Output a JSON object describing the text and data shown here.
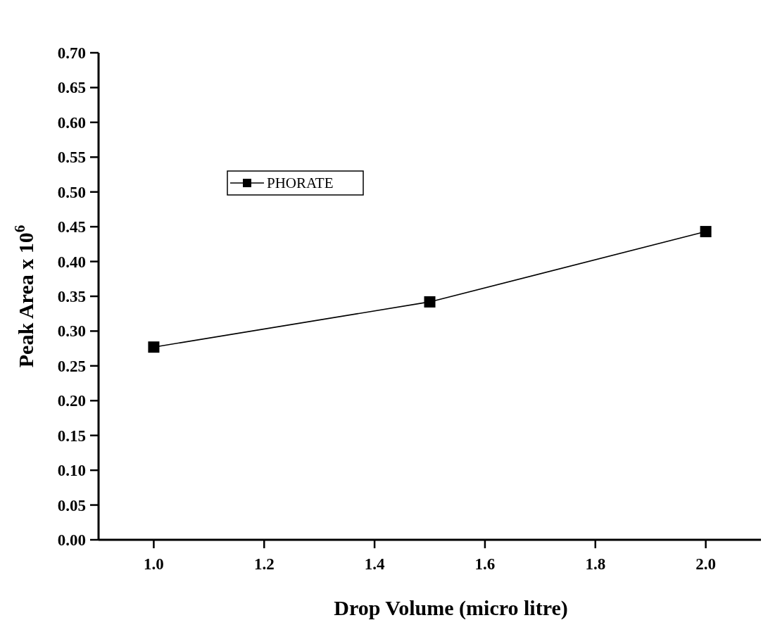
{
  "chart_data": {
    "type": "line",
    "xlabel": "Drop Volume (micro litre)",
    "ylabel": "Peak Area x 10$^{6}$",
    "x": [
      1.0,
      1.5,
      2.0
    ],
    "series": [
      {
        "name": "PHORATE",
        "color": "#000000",
        "values": [
          0.277,
          0.342,
          0.443
        ]
      }
    ],
    "xlim": [
      0.9,
      2.1
    ],
    "xticks": [
      {
        "value": 1.0,
        "label": "1.0"
      },
      1.2,
      1.4,
      1.6,
      1.8,
      {
        "value": 2.0,
        "label": "2.0"
      }
    ],
    "ylim": [
      0,
      0.7
    ],
    "yticks": [
      {
        "value": 0,
        "label": "0.00"
      },
      0.05,
      {
        "value": 0.1,
        "label": "0.10"
      },
      0.15,
      {
        "value": 0.2,
        "label": "0.20"
      },
      0.25,
      {
        "value": 0.3,
        "label": "0.30"
      },
      0.35,
      {
        "value": 0.4,
        "label": "0.40"
      },
      0.45,
      {
        "value": 0.5,
        "label": "0.50"
      },
      0.55,
      {
        "value": 0.6,
        "label": "0.60"
      },
      0.65,
      {
        "value": 0.7,
        "label": "0.70"
      }
    ],
    "grid": false,
    "legend": "top left",
    "marker": "square",
    "line_style": "solid"
  }
}
